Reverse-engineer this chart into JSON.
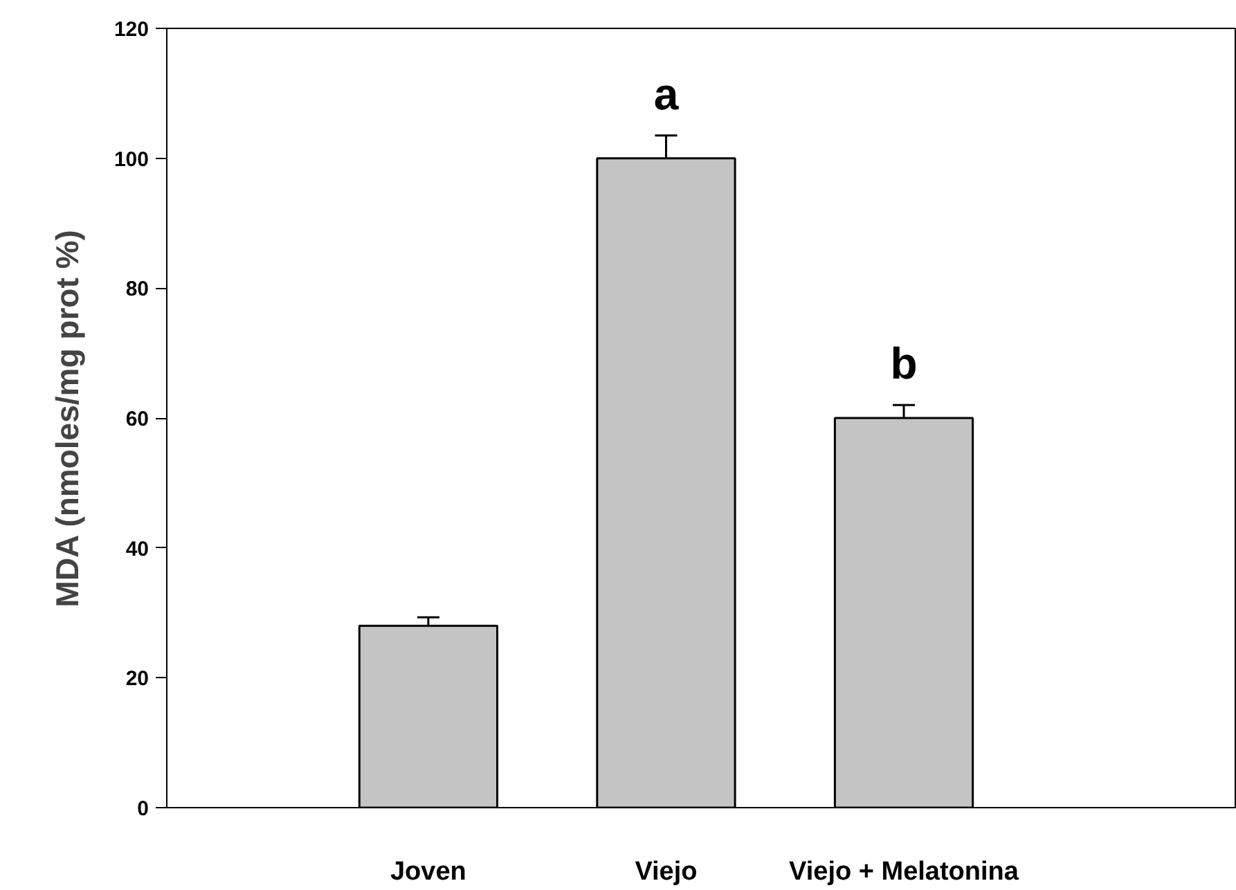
{
  "chart_data": {
    "type": "bar",
    "ylabel": "MDA (nmoles/mg prot %)",
    "categories": [
      "Joven",
      "Viejo",
      "Viejo + Melatonina"
    ],
    "values": [
      28,
      100,
      60
    ],
    "errors": [
      1.3,
      3.5,
      2
    ],
    "color": "#c4c4c4",
    "ylim": [
      0,
      120
    ],
    "yticks": [
      0,
      20,
      40,
      60,
      80,
      100,
      120
    ],
    "grid": false,
    "annotations": [
      "a",
      "b"
    ]
  }
}
